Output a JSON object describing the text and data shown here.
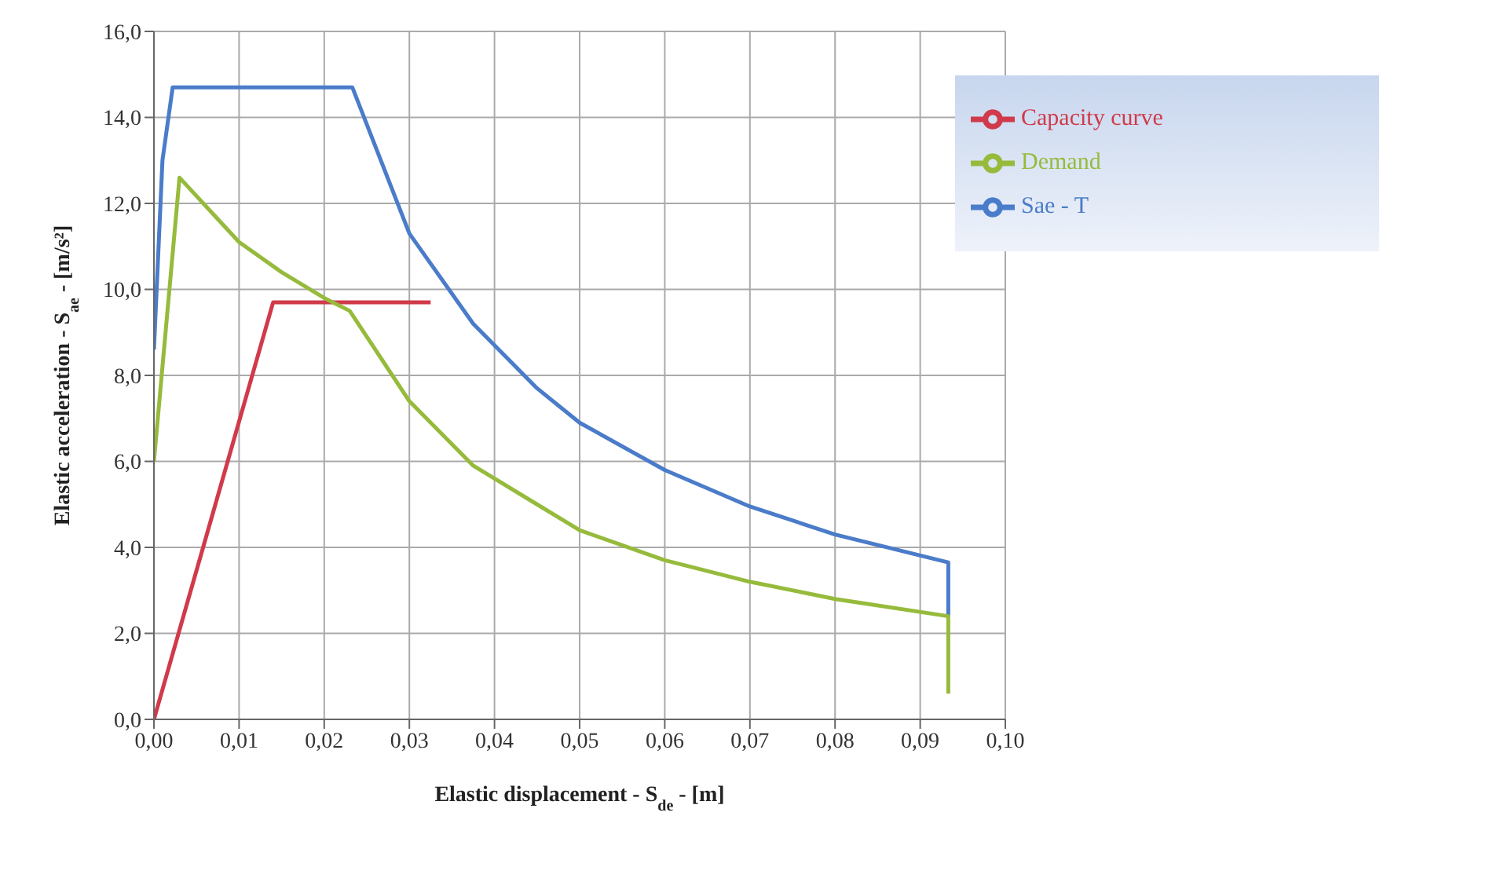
{
  "chart_data": {
    "type": "line",
    "xlabel": "Elastic displacement - S$_{de}$ - [m]",
    "ylabel": "Elastic acceleration - S$_{ae}$ - [m/s²]",
    "xlim": [
      0,
      0.1
    ],
    "ylim": [
      0,
      16
    ],
    "xticks": [
      {
        "value": 0,
        "label": "0,00"
      },
      {
        "value": 0.01,
        "label": "0,01"
      },
      {
        "value": 0.02,
        "label": "0,02"
      },
      {
        "value": 0.03,
        "label": "0,03"
      },
      {
        "value": 0.04,
        "label": "0,04"
      },
      {
        "value": 0.05,
        "label": "0,05"
      },
      {
        "value": 0.06,
        "label": "0,06"
      },
      {
        "value": 0.07,
        "label": "0,07"
      },
      {
        "value": 0.08,
        "label": "0,08"
      },
      {
        "value": 0.09,
        "label": "0,09"
      },
      {
        "value": 0.1,
        "label": "0,10"
      }
    ],
    "yticks": [
      {
        "value": 0,
        "label": "0,0"
      },
      {
        "value": 2,
        "label": "2,0"
      },
      {
        "value": 4,
        "label": "4,0"
      },
      {
        "value": 6,
        "label": "6,0"
      },
      {
        "value": 8,
        "label": "8,0"
      },
      {
        "value": 10,
        "label": "10,0"
      },
      {
        "value": 12,
        "label": "12,0"
      },
      {
        "value": 14,
        "label": "14,0"
      },
      {
        "value": 16,
        "label": "16,0"
      }
    ],
    "grid": true,
    "legend": "top right",
    "marker": "none",
    "line_style": "solid",
    "series": [
      {
        "name": "Sae - T",
        "color": "#4a7cc9",
        "x": [
          0,
          0.001,
          0.0022,
          0.0233,
          0.03,
          0.0375,
          0.045,
          0.05,
          0.06,
          0.07,
          0.08,
          0.0933,
          0.0933
        ],
        "values": [
          8.6,
          13,
          14.7,
          14.7,
          11.3,
          9.2,
          7.7,
          6.9,
          5.8,
          4.95,
          4.3,
          3.65,
          2.4
        ]
      },
      {
        "name": "Capacity curve",
        "color": "#d03a4a",
        "x": [
          0,
          0.014,
          0.0325
        ],
        "values": [
          0,
          9.7,
          9.7
        ]
      },
      {
        "name": "Demand",
        "color": "#96bb3c",
        "x": [
          0,
          0.003,
          0.01,
          0.015,
          0.02,
          0.023,
          0.03,
          0.0375,
          0.045,
          0.05,
          0.06,
          0.07,
          0.08,
          0.0933,
          0.0933
        ],
        "values": [
          6,
          12.6,
          11.1,
          10.4,
          9.8,
          9.5,
          7.4,
          5.9,
          5,
          4.4,
          3.7,
          3.2,
          2.8,
          2.4,
          0.6
        ]
      }
    ]
  }
}
